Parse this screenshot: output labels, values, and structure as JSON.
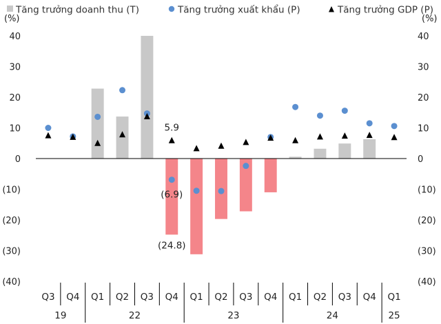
{
  "chart_data": {
    "type": "bar+scatter",
    "legend": {
      "placement": "top",
      "items": [
        {
          "label": "Tăng trưởng doanh thu (T)",
          "marker": "square",
          "color": "#c8c8c8"
        },
        {
          "label": "Tăng trưởng xuất khẩu (P)",
          "marker": "circle",
          "color": "#5b8fd0"
        },
        {
          "label": "Tăng trưởng GDP (P)",
          "marker": "triangle",
          "color": "#000000"
        }
      ]
    },
    "y_unit_left": "(%)",
    "y_unit_right": "(%)",
    "ylim": [
      -40,
      40
    ],
    "yticks": [
      "40",
      "30",
      "20",
      "10",
      "0",
      "(10)",
      "(20)",
      "(30)",
      "(40)"
    ],
    "quarters": [
      "Q3",
      "Q4",
      "Q1",
      "Q2",
      "Q3",
      "Q4",
      "Q1",
      "Q2",
      "Q3",
      "Q4",
      "Q1",
      "Q2",
      "Q3",
      "Q4",
      "Q1"
    ],
    "year_groups": [
      {
        "label": "19",
        "count": 2
      },
      {
        "label": "22",
        "count": 4
      },
      {
        "label": "23",
        "count": 4
      },
      {
        "label": "24",
        "count": 4
      },
      {
        "label": "25",
        "count": 1
      }
    ],
    "series": [
      {
        "name": "Tăng trưởng doanh thu (T)",
        "kind": "bar",
        "axis": "left",
        "positive_color": "#c8c8c8",
        "negative_color": "#f4858a",
        "values": [
          null,
          null,
          22.8,
          13.7,
          40.0,
          -24.8,
          -31.2,
          -19.7,
          -17.2,
          -11.0,
          0.6,
          3.2,
          4.9,
          6.3,
          null
        ]
      },
      {
        "name": "Tăng trưởng xuất khẩu (P)",
        "kind": "scatter",
        "axis": "right",
        "marker": "circle",
        "color": "#5b8fd0",
        "values": [
          10.0,
          7.2,
          13.6,
          22.3,
          14.7,
          -6.9,
          -10.5,
          -10.6,
          -2.4,
          7.0,
          16.8,
          14.0,
          15.6,
          11.5,
          10.6
        ]
      },
      {
        "name": "Tăng trưởng GDP (P)",
        "kind": "scatter",
        "axis": "right",
        "marker": "triangle",
        "color": "#000000",
        "values": [
          7.5,
          7.0,
          5.0,
          7.8,
          13.7,
          5.9,
          3.3,
          4.1,
          5.3,
          6.7,
          5.9,
          7.1,
          7.4,
          7.6,
          6.9
        ]
      }
    ],
    "annotations": [
      "5.9",
      "(6.9)",
      "(24.8)"
    ],
    "grid": false
  }
}
